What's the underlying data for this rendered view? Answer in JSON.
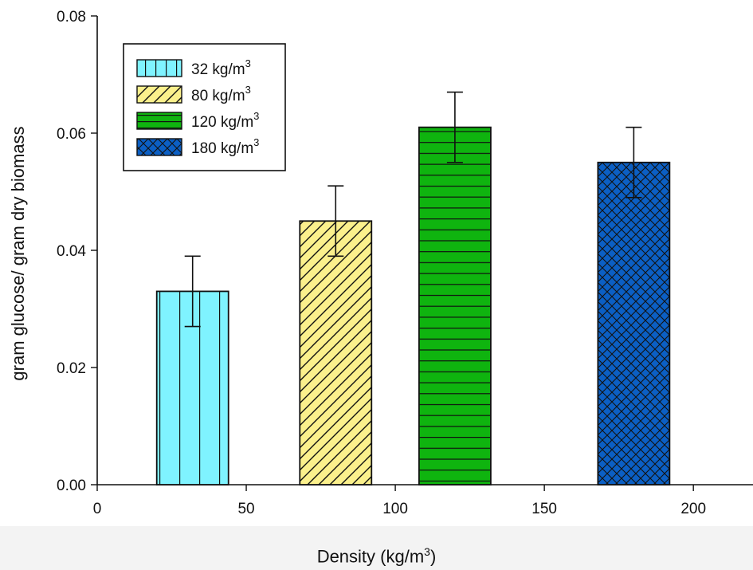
{
  "chart_data": {
    "type": "bar",
    "title": "",
    "xlabel": "Density (kg/m3)",
    "ylabel": "gram glucose/ gram dry biomass",
    "xlim": [
      0,
      220
    ],
    "ylim": [
      0,
      0.08
    ],
    "xticks": [
      "0",
      "50",
      "100",
      "150",
      "200"
    ],
    "yticks": [
      "0.00",
      "0.02",
      "0.04",
      "0.06",
      "0.08"
    ],
    "legend_position": "top-left",
    "series": [
      {
        "name": "32 kg/m3",
        "x": 32,
        "value": 0.033,
        "error": 0.006,
        "color": "#7ff3ff",
        "pattern": "vertical"
      },
      {
        "name": "80 kg/m3",
        "x": 80,
        "value": 0.045,
        "error": 0.006,
        "color": "#fbf08c",
        "pattern": "diagonal"
      },
      {
        "name": "120 kg/m3",
        "x": 120,
        "value": 0.061,
        "error": 0.006,
        "color": "#0fb40f",
        "pattern": "horizontal"
      },
      {
        "name": "180 kg/m3",
        "x": 180,
        "value": 0.055,
        "error": 0.006,
        "color": "#0b5fc4",
        "pattern": "crosshatch"
      }
    ]
  },
  "axis": {
    "x_title_main": "Density  (kg/m",
    "x_title_sup": "3",
    "x_title_end": ")"
  }
}
